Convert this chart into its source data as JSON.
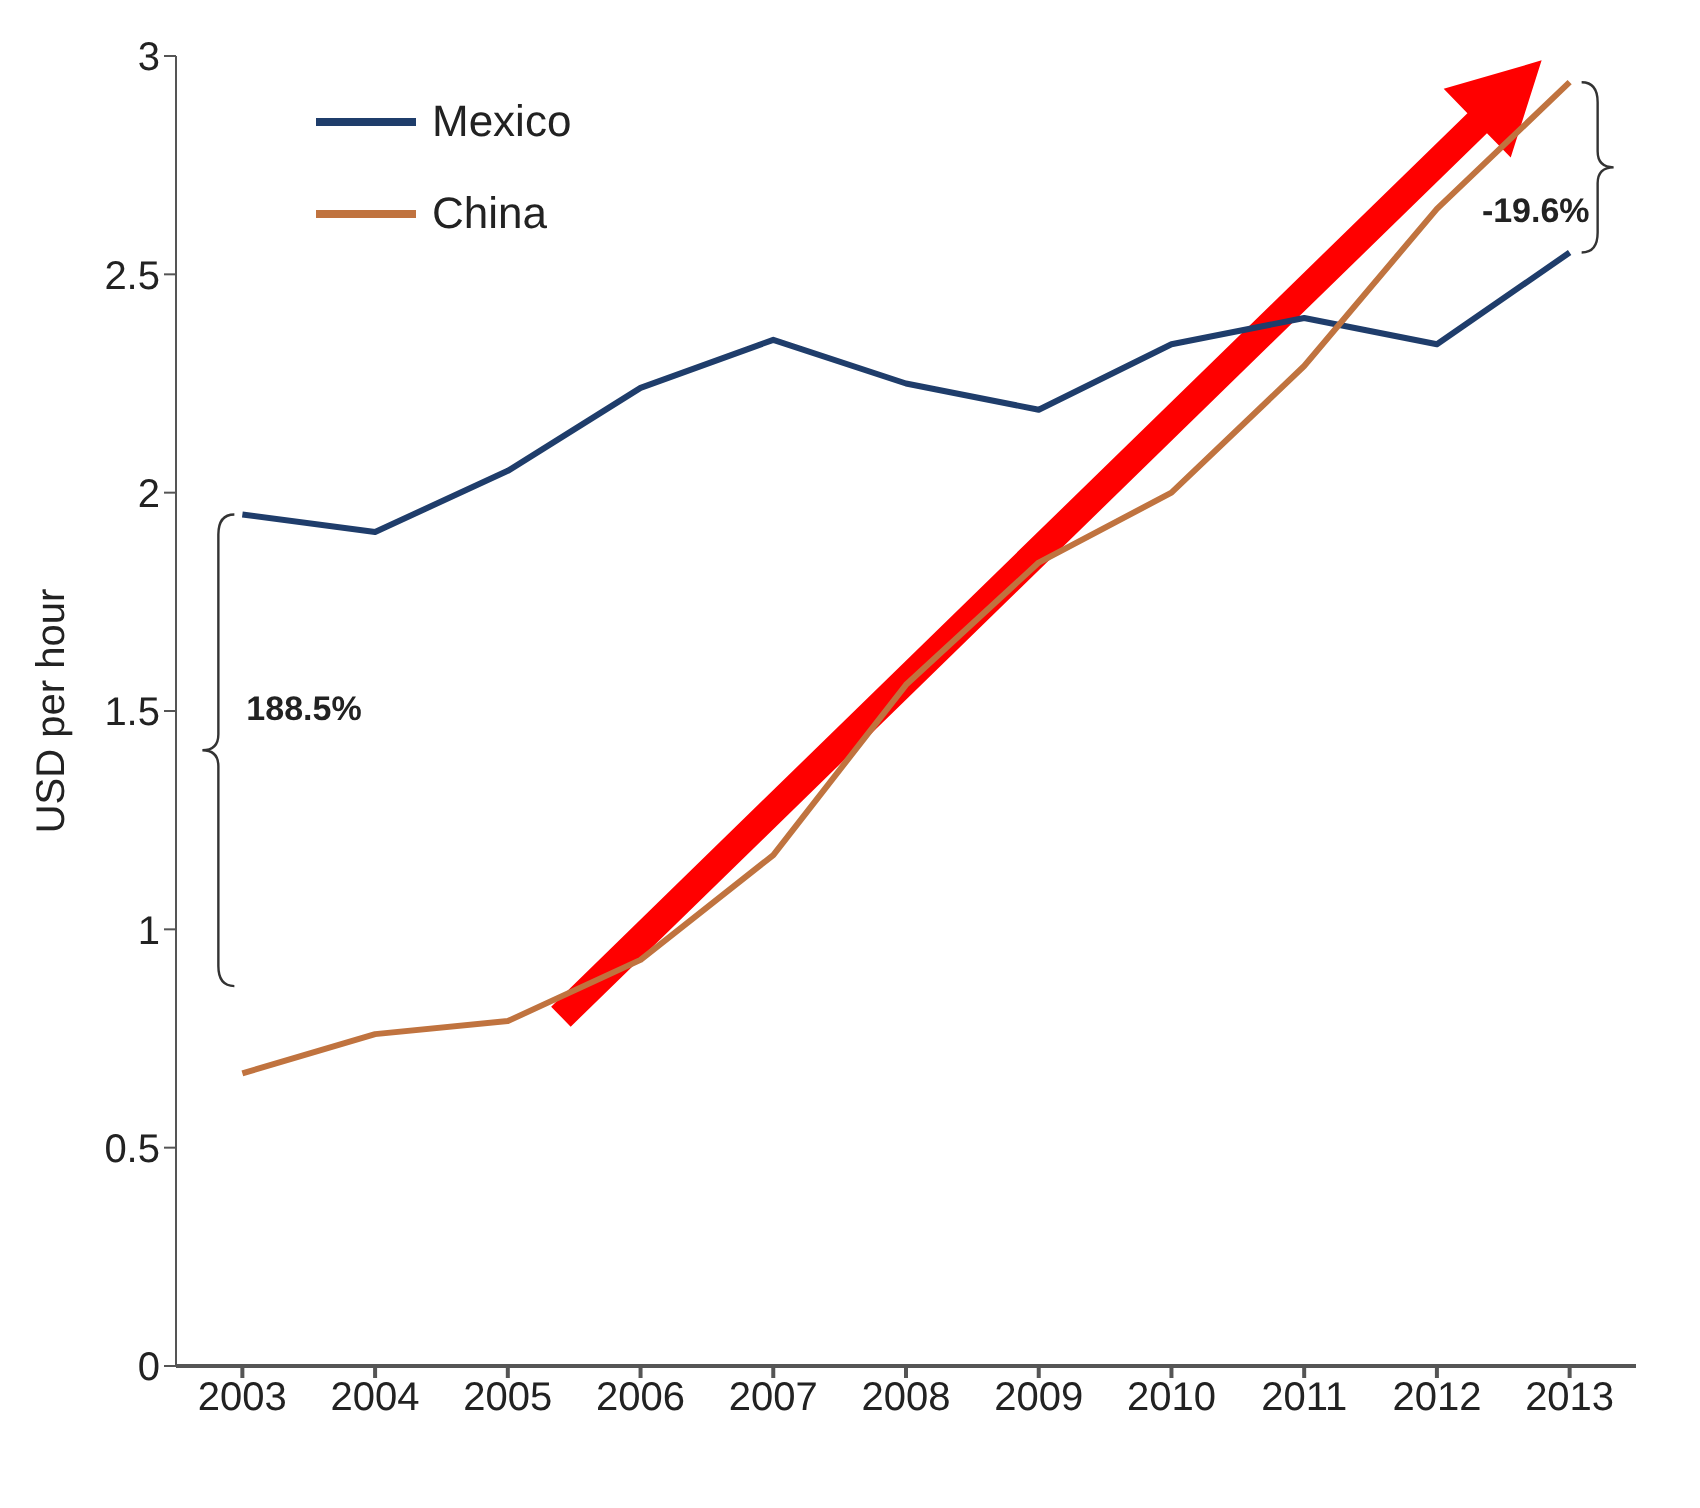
{
  "chart_data": {
    "type": "line",
    "ylabel": "USD per hour",
    "categories": [
      "2003",
      "2004",
      "2005",
      "2006",
      "2007",
      "2008",
      "2009",
      "2010",
      "2011",
      "2012",
      "2013"
    ],
    "series": [
      {
        "name": "Mexico",
        "color": "#1f3d6b",
        "values": [
          1.95,
          1.91,
          2.05,
          2.24,
          2.35,
          2.25,
          2.19,
          2.34,
          2.4,
          2.34,
          2.55
        ]
      },
      {
        "name": "China",
        "color": "#c0733f",
        "values": [
          0.67,
          0.76,
          0.79,
          0.93,
          1.17,
          1.56,
          1.84,
          2.0,
          2.29,
          2.65,
          2.94
        ]
      }
    ],
    "ylim": [
      0,
      3
    ],
    "yticks": [
      0,
      0.5,
      1,
      1.5,
      2,
      2.5,
      3
    ],
    "annotations": [
      "188.5%",
      "-19.6%"
    ],
    "grid": false,
    "legend": "top left",
    "marker": "none",
    "line_style": "solid"
  }
}
